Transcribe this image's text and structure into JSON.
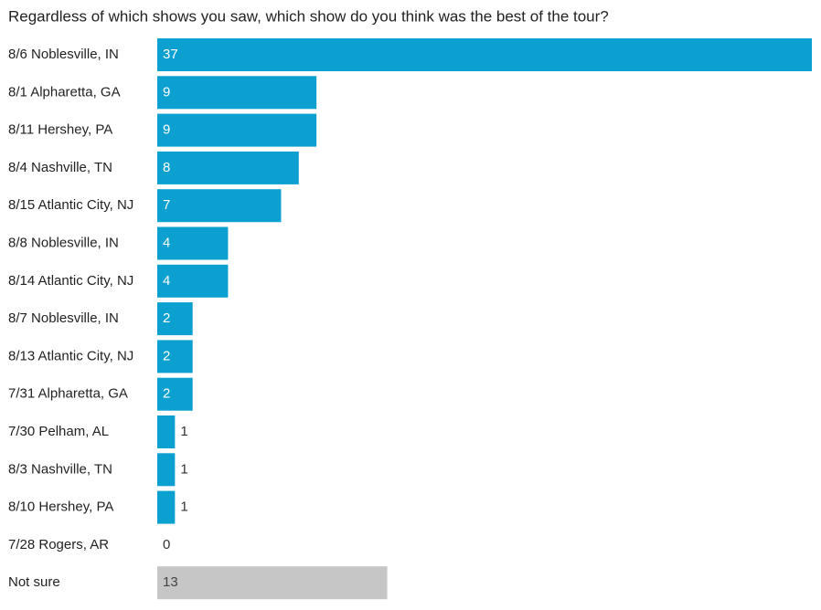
{
  "chart_data": {
    "type": "bar",
    "orientation": "horizontal",
    "title": "Regardless of which shows you saw, which show do you think was the best of the tour?",
    "categories": [
      "8/6 Noblesville, IN",
      "8/1 Alpharetta, GA",
      "8/11 Hershey, PA",
      "8/4 Nashville, TN",
      "8/15 Atlantic City, NJ",
      "8/8 Noblesville, IN",
      "8/14 Atlantic City, NJ",
      "8/7 Noblesville, IN",
      "8/13 Atlantic City, NJ",
      "7/31 Alpharetta, GA",
      "7/30 Pelham, AL",
      "8/3 Nashville, TN",
      "8/10 Hershey, PA",
      "7/28 Rogers, AR",
      "Not sure"
    ],
    "values": [
      37,
      9,
      9,
      8,
      7,
      4,
      4,
      2,
      2,
      2,
      1,
      1,
      1,
      0,
      13
    ],
    "colors": [
      "#0ba0cf",
      "#0ba0cf",
      "#0ba0cf",
      "#0ba0cf",
      "#0ba0cf",
      "#0ba0cf",
      "#0ba0cf",
      "#0ba0cf",
      "#0ba0cf",
      "#0ba0cf",
      "#0ba0cf",
      "#0ba0cf",
      "#0ba0cf",
      "#0ba0cf",
      "#c6c6c6"
    ]
  }
}
